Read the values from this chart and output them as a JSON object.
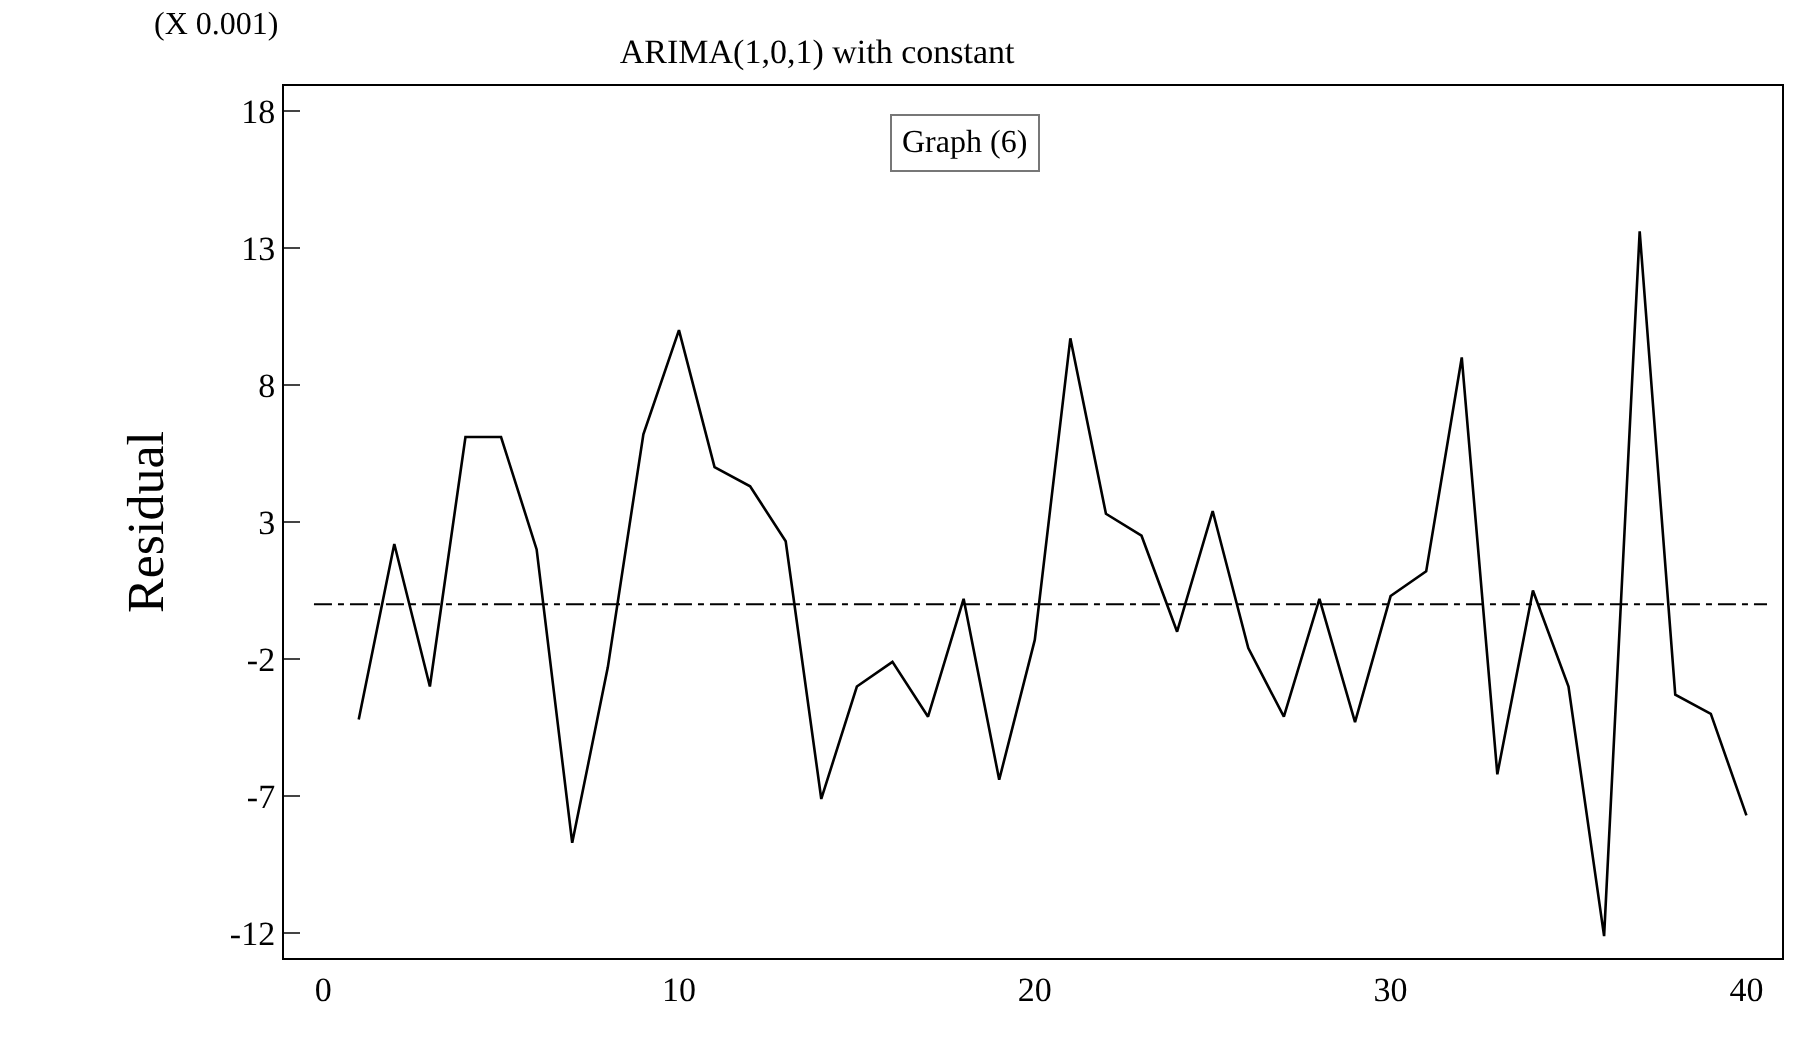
{
  "chart_data": {
    "type": "line",
    "title": "ARIMA(1,0,1) with constant",
    "ylabel": "Residual",
    "annotations": [
      "(X 0.001)",
      "Graph (6)"
    ],
    "x": [
      1,
      2,
      3,
      4,
      5,
      6,
      7,
      8,
      9,
      10,
      11,
      12,
      13,
      14,
      15,
      16,
      17,
      18,
      19,
      20,
      21,
      22,
      23,
      24,
      25,
      26,
      27,
      28,
      29,
      30,
      31,
      32,
      33,
      34,
      35,
      36,
      37,
      38,
      39,
      40
    ],
    "series": [
      {
        "color": "#000000",
        "values": [
          -4.2,
          2.2,
          -3.0,
          6.1,
          6.1,
          2.0,
          -8.7,
          -2.3,
          6.2,
          10.0,
          5.0,
          4.3,
          2.3,
          -7.1,
          -3.0,
          -2.1,
          -4.1,
          0.2,
          -6.4,
          -1.3,
          9.7,
          3.3,
          2.5,
          -1.0,
          3.4,
          -1.6,
          -4.1,
          0.2,
          -4.3,
          0.3,
          1.2,
          9.0,
          -6.2,
          0.5,
          -3.0,
          -12.1,
          13.6,
          -3.3,
          -4.0,
          -7.7
        ]
      }
    ],
    "xlim": [
      -1.1,
      41
    ],
    "xticks": [
      0,
      10,
      20,
      30,
      40
    ],
    "ylim": [
      -12.9,
      18.9
    ],
    "yticks": [
      -12,
      -7,
      -2,
      3,
      8,
      13,
      18
    ],
    "ref_lines": [
      {
        "axis": "y",
        "value": 0,
        "line_style": "dashed",
        "color": "#000000"
      }
    ],
    "grid": false,
    "marker": "none",
    "line_style": "solid"
  }
}
